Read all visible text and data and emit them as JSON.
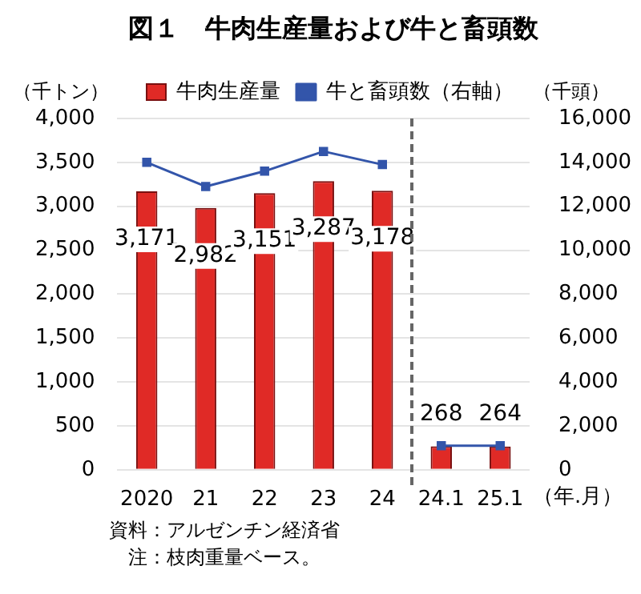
{
  "chart_data": {
    "type": "bar",
    "title": "図１　牛肉生産量および牛と畜頭数",
    "ylabel": "（千トン）",
    "y2label": "（千頭）",
    "xlabel": "（年.月）",
    "categories": [
      "2020",
      "21",
      "22",
      "23",
      "24",
      "24.1",
      "25.1"
    ],
    "series": [
      {
        "name": "牛肉生産量",
        "color": "#e02a26",
        "values": [
          3171,
          2982,
          3151,
          3287,
          3178,
          268,
          264
        ],
        "value_labels": [
          "3,171",
          "2,982",
          "3,151",
          "3,287",
          "3,178",
          "268",
          "264"
        ]
      },
      {
        "name": "牛と畜頭数（右軸）",
        "type": "line",
        "axis": "y2",
        "color": "#3355aa",
        "marker": "square",
        "values": [
          14000,
          12900,
          13600,
          14500,
          13900,
          null,
          null
        ]
      },
      {
        "type": "line",
        "axis": "y2",
        "color": "#3355aa",
        "marker": "square",
        "values": [
          null,
          null,
          null,
          null,
          null,
          1100,
          1100
        ]
      }
    ],
    "ylim": [
      0,
      4000
    ],
    "yticks": [
      0,
      500,
      {
        "value": 1000,
        "label": "1,000"
      },
      {
        "value": 1500,
        "label": "1,500"
      },
      {
        "value": 2000,
        "label": "2,000"
      },
      {
        "value": 2500,
        "label": "2,500"
      },
      {
        "value": 3000,
        "label": "3,000"
      },
      {
        "value": 3500,
        "label": "3,500"
      },
      {
        "value": 4000,
        "label": "4,000"
      }
    ],
    "y2lim": [
      0,
      16000
    ],
    "y2ticks": [
      0,
      {
        "value": 2000,
        "label": "2,000"
      },
      {
        "value": 4000,
        "label": "4,000"
      },
      {
        "value": 6000,
        "label": "6,000"
      },
      {
        "value": 8000,
        "label": "8,000"
      },
      {
        "value": 10000,
        "label": "10,000"
      },
      {
        "value": 12000,
        "label": "12,000"
      },
      {
        "value": 14000,
        "label": "14,000"
      },
      {
        "value": 16000,
        "label": "16,000"
      }
    ],
    "grid": "y",
    "legend": "top",
    "annotations": [
      "資料：アルゼンチン経済省",
      "注：枝肉重量ベース。"
    ]
  }
}
